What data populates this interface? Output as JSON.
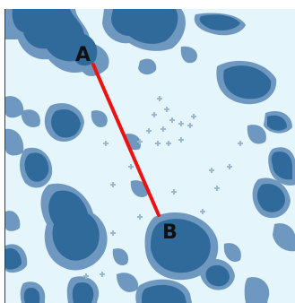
{
  "game_board": {
    "colors": {
      "water": "#e4f5fb",
      "land": "#2f6a9b",
      "shallow": "#6e98c0",
      "path": "#ee1111"
    },
    "point_a": {
      "label": "A"
    },
    "point_b": {
      "label": "B"
    }
  }
}
